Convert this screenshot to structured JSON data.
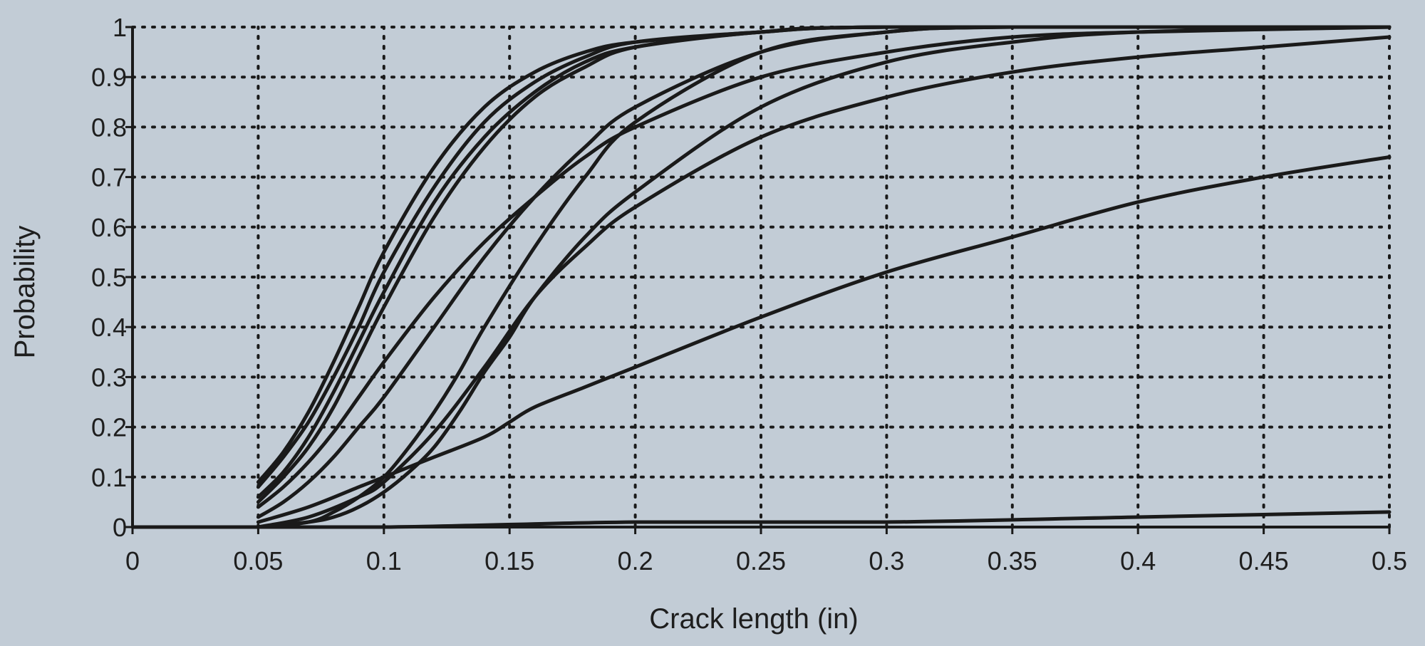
{
  "chart_data": {
    "type": "line",
    "title": "",
    "xlabel": "Crack length (in)",
    "ylabel": "Probability",
    "xlim": [
      0,
      0.5
    ],
    "ylim": [
      0,
      1
    ],
    "x_ticks": [
      "0",
      "0.05",
      "0.1",
      "0.15",
      "0.2",
      "0.25",
      "0.3",
      "0.35",
      "0.4",
      "0.45",
      "0.5"
    ],
    "y_ticks": [
      "0",
      "0.1",
      "0.2",
      "0.3",
      "0.4",
      "0.5",
      "0.6",
      "0.7",
      "0.8",
      "0.9",
      "1"
    ],
    "grid": true,
    "legend": "none",
    "line_color": "#1a1a1a",
    "grid_color": "#1a1a1a",
    "series": [
      {
        "points": [
          [
            0.05,
            0.09
          ],
          [
            0.06,
            0.15
          ],
          [
            0.07,
            0.23
          ],
          [
            0.08,
            0.33
          ],
          [
            0.09,
            0.44
          ],
          [
            0.1,
            0.55
          ],
          [
            0.12,
            0.72
          ],
          [
            0.14,
            0.84
          ],
          [
            0.16,
            0.91
          ],
          [
            0.18,
            0.95
          ],
          [
            0.2,
            0.97
          ],
          [
            0.25,
            0.99
          ],
          [
            0.3,
            1.0
          ],
          [
            0.5,
            1.0
          ]
        ]
      },
      {
        "points": [
          [
            0.05,
            0.08
          ],
          [
            0.06,
            0.14
          ],
          [
            0.07,
            0.21
          ],
          [
            0.08,
            0.3
          ],
          [
            0.09,
            0.4
          ],
          [
            0.1,
            0.51
          ],
          [
            0.12,
            0.68
          ],
          [
            0.14,
            0.81
          ],
          [
            0.16,
            0.89
          ],
          [
            0.18,
            0.94
          ],
          [
            0.2,
            0.97
          ],
          [
            0.25,
            0.99
          ],
          [
            0.3,
            1.0
          ],
          [
            0.5,
            1.0
          ]
        ]
      },
      {
        "points": [
          [
            0.05,
            0.06
          ],
          [
            0.06,
            0.11
          ],
          [
            0.07,
            0.18
          ],
          [
            0.08,
            0.27
          ],
          [
            0.09,
            0.37
          ],
          [
            0.1,
            0.47
          ],
          [
            0.12,
            0.65
          ],
          [
            0.14,
            0.78
          ],
          [
            0.16,
            0.87
          ],
          [
            0.18,
            0.93
          ],
          [
            0.2,
            0.96
          ],
          [
            0.25,
            0.99
          ],
          [
            0.3,
            1.0
          ],
          [
            0.5,
            1.0
          ]
        ]
      },
      {
        "points": [
          [
            0.05,
            0.05
          ],
          [
            0.06,
            0.1
          ],
          [
            0.07,
            0.16
          ],
          [
            0.08,
            0.24
          ],
          [
            0.09,
            0.34
          ],
          [
            0.1,
            0.44
          ],
          [
            0.12,
            0.62
          ],
          [
            0.14,
            0.76
          ],
          [
            0.16,
            0.86
          ],
          [
            0.18,
            0.92
          ],
          [
            0.2,
            0.96
          ],
          [
            0.25,
            0.99
          ],
          [
            0.3,
            1.0
          ],
          [
            0.5,
            1.0
          ]
        ]
      },
      {
        "points": [
          [
            0.05,
            0.02
          ],
          [
            0.06,
            0.05
          ],
          [
            0.07,
            0.09
          ],
          [
            0.08,
            0.14
          ],
          [
            0.09,
            0.2
          ],
          [
            0.1,
            0.26
          ],
          [
            0.12,
            0.4
          ],
          [
            0.14,
            0.54
          ],
          [
            0.16,
            0.66
          ],
          [
            0.18,
            0.76
          ],
          [
            0.2,
            0.84
          ],
          [
            0.25,
            0.95
          ],
          [
            0.3,
            0.99
          ],
          [
            0.35,
            1.0
          ],
          [
            0.5,
            1.0
          ]
        ]
      },
      {
        "points": [
          [
            0.05,
            0.04
          ],
          [
            0.06,
            0.08
          ],
          [
            0.07,
            0.13
          ],
          [
            0.08,
            0.19
          ],
          [
            0.09,
            0.26
          ],
          [
            0.1,
            0.33
          ],
          [
            0.12,
            0.46
          ],
          [
            0.14,
            0.57
          ],
          [
            0.16,
            0.66
          ],
          [
            0.18,
            0.74
          ],
          [
            0.2,
            0.8
          ],
          [
            0.25,
            0.9
          ],
          [
            0.3,
            0.95
          ],
          [
            0.35,
            0.98
          ],
          [
            0.4,
            0.99
          ],
          [
            0.5,
            1.0
          ]
        ]
      },
      {
        "points": [
          [
            0.05,
            0.0
          ],
          [
            0.07,
            0.01
          ],
          [
            0.08,
            0.03
          ],
          [
            0.09,
            0.06
          ],
          [
            0.1,
            0.1
          ],
          [
            0.11,
            0.16
          ],
          [
            0.12,
            0.23
          ],
          [
            0.13,
            0.31
          ],
          [
            0.14,
            0.4
          ],
          [
            0.16,
            0.56
          ],
          [
            0.18,
            0.7
          ],
          [
            0.2,
            0.81
          ],
          [
            0.25,
            0.95
          ],
          [
            0.3,
            0.99
          ],
          [
            0.35,
            1.0
          ],
          [
            0.5,
            1.0
          ]
        ]
      },
      {
        "points": [
          [
            0.05,
            0.0
          ],
          [
            0.07,
            0.01
          ],
          [
            0.08,
            0.02
          ],
          [
            0.09,
            0.04
          ],
          [
            0.1,
            0.07
          ],
          [
            0.11,
            0.11
          ],
          [
            0.12,
            0.16
          ],
          [
            0.13,
            0.23
          ],
          [
            0.14,
            0.31
          ],
          [
            0.15,
            0.38
          ],
          [
            0.16,
            0.46
          ],
          [
            0.18,
            0.58
          ],
          [
            0.2,
            0.67
          ],
          [
            0.25,
            0.84
          ],
          [
            0.3,
            0.93
          ],
          [
            0.35,
            0.97
          ],
          [
            0.4,
            0.99
          ],
          [
            0.5,
            1.0
          ]
        ]
      },
      {
        "points": [
          [
            0.05,
            0.01
          ],
          [
            0.07,
            0.04
          ],
          [
            0.09,
            0.08
          ],
          [
            0.1,
            0.1
          ],
          [
            0.12,
            0.14
          ],
          [
            0.14,
            0.18
          ],
          [
            0.15,
            0.21
          ],
          [
            0.16,
            0.24
          ],
          [
            0.18,
            0.28
          ],
          [
            0.2,
            0.32
          ],
          [
            0.25,
            0.42
          ],
          [
            0.3,
            0.51
          ],
          [
            0.35,
            0.58
          ],
          [
            0.4,
            0.65
          ],
          [
            0.45,
            0.7
          ],
          [
            0.5,
            0.74
          ]
        ]
      },
      {
        "points": [
          [
            0.05,
            0.0
          ],
          [
            0.07,
            0.02
          ],
          [
            0.09,
            0.06
          ],
          [
            0.1,
            0.09
          ],
          [
            0.12,
            0.19
          ],
          [
            0.14,
            0.32
          ],
          [
            0.16,
            0.46
          ],
          [
            0.18,
            0.56
          ],
          [
            0.2,
            0.64
          ],
          [
            0.25,
            0.78
          ],
          [
            0.3,
            0.86
          ],
          [
            0.35,
            0.91
          ],
          [
            0.4,
            0.94
          ],
          [
            0.45,
            0.96
          ],
          [
            0.5,
            0.98
          ]
        ]
      },
      {
        "points": [
          [
            0.0,
            0.0
          ],
          [
            0.1,
            0.0
          ],
          [
            0.2,
            0.01
          ],
          [
            0.3,
            0.01
          ],
          [
            0.4,
            0.02
          ],
          [
            0.5,
            0.03
          ]
        ]
      }
    ]
  }
}
